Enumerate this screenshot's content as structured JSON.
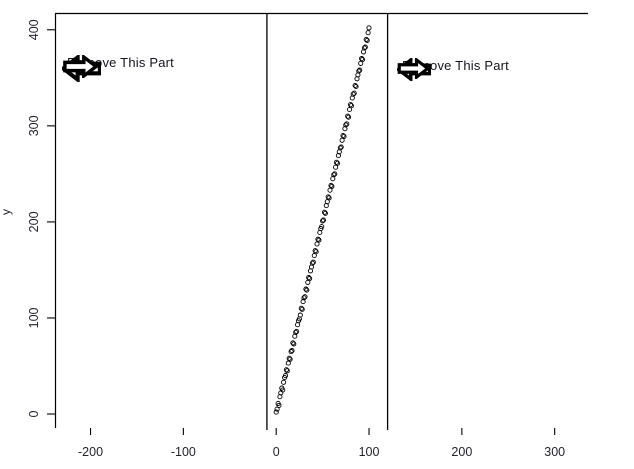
{
  "figure": {
    "background": "#ffffff",
    "axis_color": "#000000",
    "point_color": "#000000",
    "vline_color": "#000000"
  },
  "annotations": {
    "left": {
      "label": "Remove This Part"
    },
    "right": {
      "label": "Remove This Part"
    }
  },
  "chart_data": {
    "type": "scatter",
    "title": "",
    "xlabel": "",
    "ylabel": "y",
    "marker": "open-circle",
    "grid": false,
    "xlim": [
      -240,
      345
    ],
    "ylim": [
      -17,
      418
    ],
    "x_tick_values": [
      -200,
      -100,
      0,
      100,
      200,
      300
    ],
    "x_tick_labels": [
      "-200",
      "-100",
      "0",
      "100",
      "200",
      "300"
    ],
    "y_tick_values": [
      0,
      100,
      200,
      300,
      400
    ],
    "y_tick_labels": [
      "0",
      "100",
      "200",
      "300",
      "400"
    ],
    "vertical_lines": [
      -10,
      120
    ],
    "overlay_annotations": [
      "Remove This Part",
      "Remove This Part"
    ],
    "points": {
      "x": [
        0,
        1,
        2,
        3,
        4,
        5,
        6,
        7,
        8,
        9,
        10,
        11,
        12,
        13,
        14,
        15,
        16,
        17,
        18,
        19,
        20,
        21,
        22,
        23,
        24,
        25,
        26,
        27,
        28,
        29,
        30,
        31,
        32,
        33,
        34,
        35,
        36,
        37,
        38,
        39,
        40,
        41,
        42,
        43,
        44,
        45,
        46,
        47,
        48,
        49,
        50,
        51,
        52,
        53,
        54,
        55,
        56,
        57,
        58,
        59,
        60,
        61,
        62,
        63,
        64,
        65,
        66,
        67,
        68,
        69,
        70,
        71,
        72,
        73,
        74,
        75,
        76,
        77,
        78,
        79,
        80,
        81,
        82,
        83,
        84,
        85,
        86,
        87,
        88,
        89,
        90,
        91,
        92,
        93,
        94,
        95,
        96,
        97,
        98,
        99,
        100
      ],
      "y": [
        2,
        5,
        11,
        9,
        18,
        22,
        27,
        25,
        33,
        38,
        40,
        46,
        45,
        53,
        58,
        57,
        65,
        66,
        74,
        73,
        81,
        85,
        86,
        93,
        97,
        99,
        103,
        110,
        109,
        117,
        121,
        122,
        130,
        129,
        137,
        142,
        141,
        149,
        153,
        157,
        158,
        165,
        170,
        169,
        177,
        182,
        181,
        189,
        193,
        195,
        201,
        202,
        210,
        209,
        217,
        221,
        226,
        225,
        233,
        238,
        237,
        245,
        249,
        250,
        257,
        262,
        261,
        269,
        273,
        277,
        278,
        285,
        290,
        289,
        297,
        301,
        302,
        310,
        309,
        317,
        322,
        321,
        329,
        333,
        334,
        342,
        341,
        349,
        353,
        357,
        358,
        365,
        370,
        369,
        377,
        381,
        382,
        390,
        389,
        397,
        402
      ]
    }
  }
}
